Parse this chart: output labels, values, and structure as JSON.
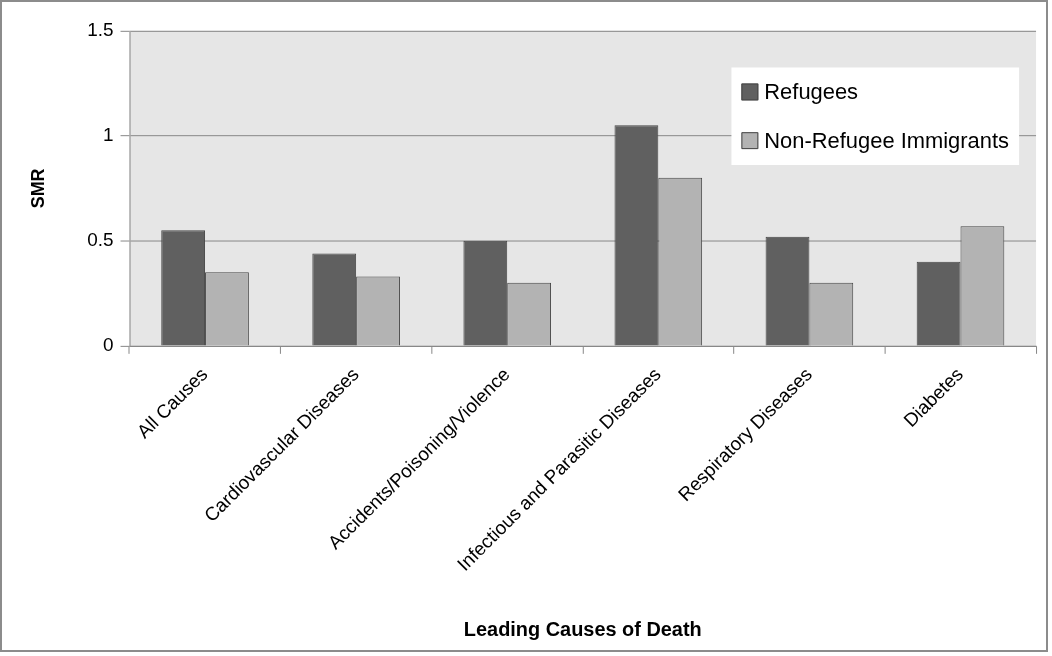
{
  "chart_data": {
    "type": "bar",
    "xlabel": "Leading Causes of Death",
    "ylabel": "SMR",
    "categories": [
      "All Causes",
      "Cardiovascular Diseases",
      "Accidents/Poisoning/Violence",
      "Infectious and Parasitic Diseases",
      "Respiratory Diseases",
      "Diabetes"
    ],
    "series": [
      {
        "name": "Refugees",
        "color": "#606060",
        "values": [
          0.55,
          0.44,
          0.5,
          1.05,
          0.52,
          0.4
        ]
      },
      {
        "name": "Non-Refugee Immigrants",
        "color": "#b3b3b3",
        "values": [
          0.35,
          0.33,
          0.3,
          0.8,
          0.3,
          0.57
        ]
      }
    ],
    "ylim": [
      0,
      1.5
    ],
    "yticks": [
      0,
      0.5,
      1,
      1.5
    ],
    "grid": "y",
    "legend": "top right"
  }
}
